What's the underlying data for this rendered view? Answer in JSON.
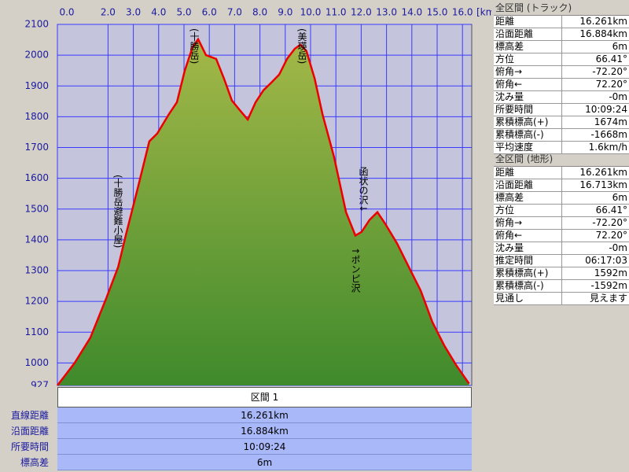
{
  "chart_data": {
    "type": "area",
    "x_label": "[km]",
    "x": [
      0,
      0.68,
      1.3,
      1.93,
      2.4,
      2.7,
      3.17,
      3.63,
      3.94,
      4.41,
      4.72,
      5.03,
      5.34,
      5.56,
      5.87,
      6.27,
      6.58,
      6.89,
      7.2,
      7.52,
      7.83,
      8.14,
      8.45,
      8.76,
      9.07,
      9.38,
      9.6,
      9.84,
      10.16,
      10.47,
      10.93,
      11.4,
      11.77,
      12.02,
      12.33,
      12.64,
      12.95,
      13.42,
      13.88,
      14.35,
      14.81,
      15.28,
      15.75,
      16.261
    ],
    "values": [
      927,
      1000,
      1082,
      1210,
      1312,
      1414,
      1567,
      1720,
      1745,
      1809,
      1847,
      1950,
      2026,
      2052,
      2000,
      1988,
      1924,
      1853,
      1822,
      1791,
      1847,
      1886,
      1911,
      1937,
      1988,
      2021,
      2034,
      2013,
      1924,
      1809,
      1669,
      1490,
      1414,
      1426,
      1465,
      1490,
      1452,
      1388,
      1312,
      1235,
      1133,
      1057,
      993,
      933
    ],
    "color": "#ee0000",
    "fill_top": "#a4b848",
    "fill_bottom": "#3f8a2c",
    "grid": true,
    "xlim": [
      0,
      16.261
    ],
    "ylim": [
      927,
      2100
    ],
    "xticks": [
      {
        "value": 0,
        "label": "0.0"
      },
      {
        "value": 2,
        "label": "2.0"
      },
      {
        "value": 3,
        "label": "3.0"
      },
      {
        "value": 4,
        "label": "4.0"
      },
      {
        "value": 5,
        "label": "5.0"
      },
      {
        "value": 6,
        "label": "6.0"
      },
      {
        "value": 7,
        "label": "7.0"
      },
      {
        "value": 8,
        "label": "8.0"
      },
      {
        "value": 9,
        "label": "9.0"
      },
      {
        "value": 10,
        "label": "10.0"
      },
      {
        "value": 11,
        "label": "11.0"
      },
      {
        "value": 12,
        "label": "12.0"
      },
      {
        "value": 13,
        "label": "13.0"
      },
      {
        "value": 14,
        "label": "14.0"
      },
      {
        "value": 15,
        "label": "15.0"
      },
      {
        "value": 16,
        "label": "16.0"
      }
    ],
    "yticks": [
      927,
      1000,
      1100,
      1200,
      1300,
      1400,
      1500,
      1600,
      1700,
      1800,
      1900,
      2000,
      2100
    ],
    "annotations": [
      "(十勝岳)",
      "(美瑛岳)",
      "(十勝岳避難小屋)",
      "函状の沢↓",
      "↑ポンピ沢"
    ]
  },
  "section": {
    "header": "区間 1",
    "rows": [
      {
        "label": "直線距離",
        "value": "16.261km"
      },
      {
        "label": "沿面距離",
        "value": "16.884km"
      },
      {
        "label": "所要時間",
        "value": "10:09:24"
      },
      {
        "label": "標高差",
        "value": "6m"
      }
    ]
  },
  "track_panel": {
    "title": "全区間 (トラック)",
    "rows": [
      [
        "距離",
        "16.261km"
      ],
      [
        "沿面距離",
        "16.884km"
      ],
      [
        "標高差",
        "6m"
      ],
      [
        "方位",
        "66.41°"
      ],
      [
        "俯角→",
        "-72.20°"
      ],
      [
        "俯角←",
        "72.20°"
      ],
      [
        "沈み量",
        "-0m"
      ],
      [
        "所要時間",
        "10:09:24"
      ],
      [
        "累積標高(+)",
        "1674m"
      ],
      [
        "累積標高(-)",
        "-1668m"
      ],
      [
        "平均速度",
        "1.6km/h"
      ]
    ]
  },
  "terrain_panel": {
    "title": "全区間 (地形)",
    "rows": [
      [
        "距離",
        "16.261km"
      ],
      [
        "沿面距離",
        "16.713km"
      ],
      [
        "標高差",
        "6m"
      ],
      [
        "方位",
        "66.41°"
      ],
      [
        "俯角→",
        "-72.20°"
      ],
      [
        "俯角←",
        "72.20°"
      ],
      [
        "沈み量",
        "-0m"
      ],
      [
        "推定時間",
        "06:17:03"
      ],
      [
        "累積標高(+)",
        "1592m"
      ],
      [
        "累積標高(-)",
        "-1592m"
      ],
      [
        "見通し",
        "見えます"
      ]
    ]
  }
}
